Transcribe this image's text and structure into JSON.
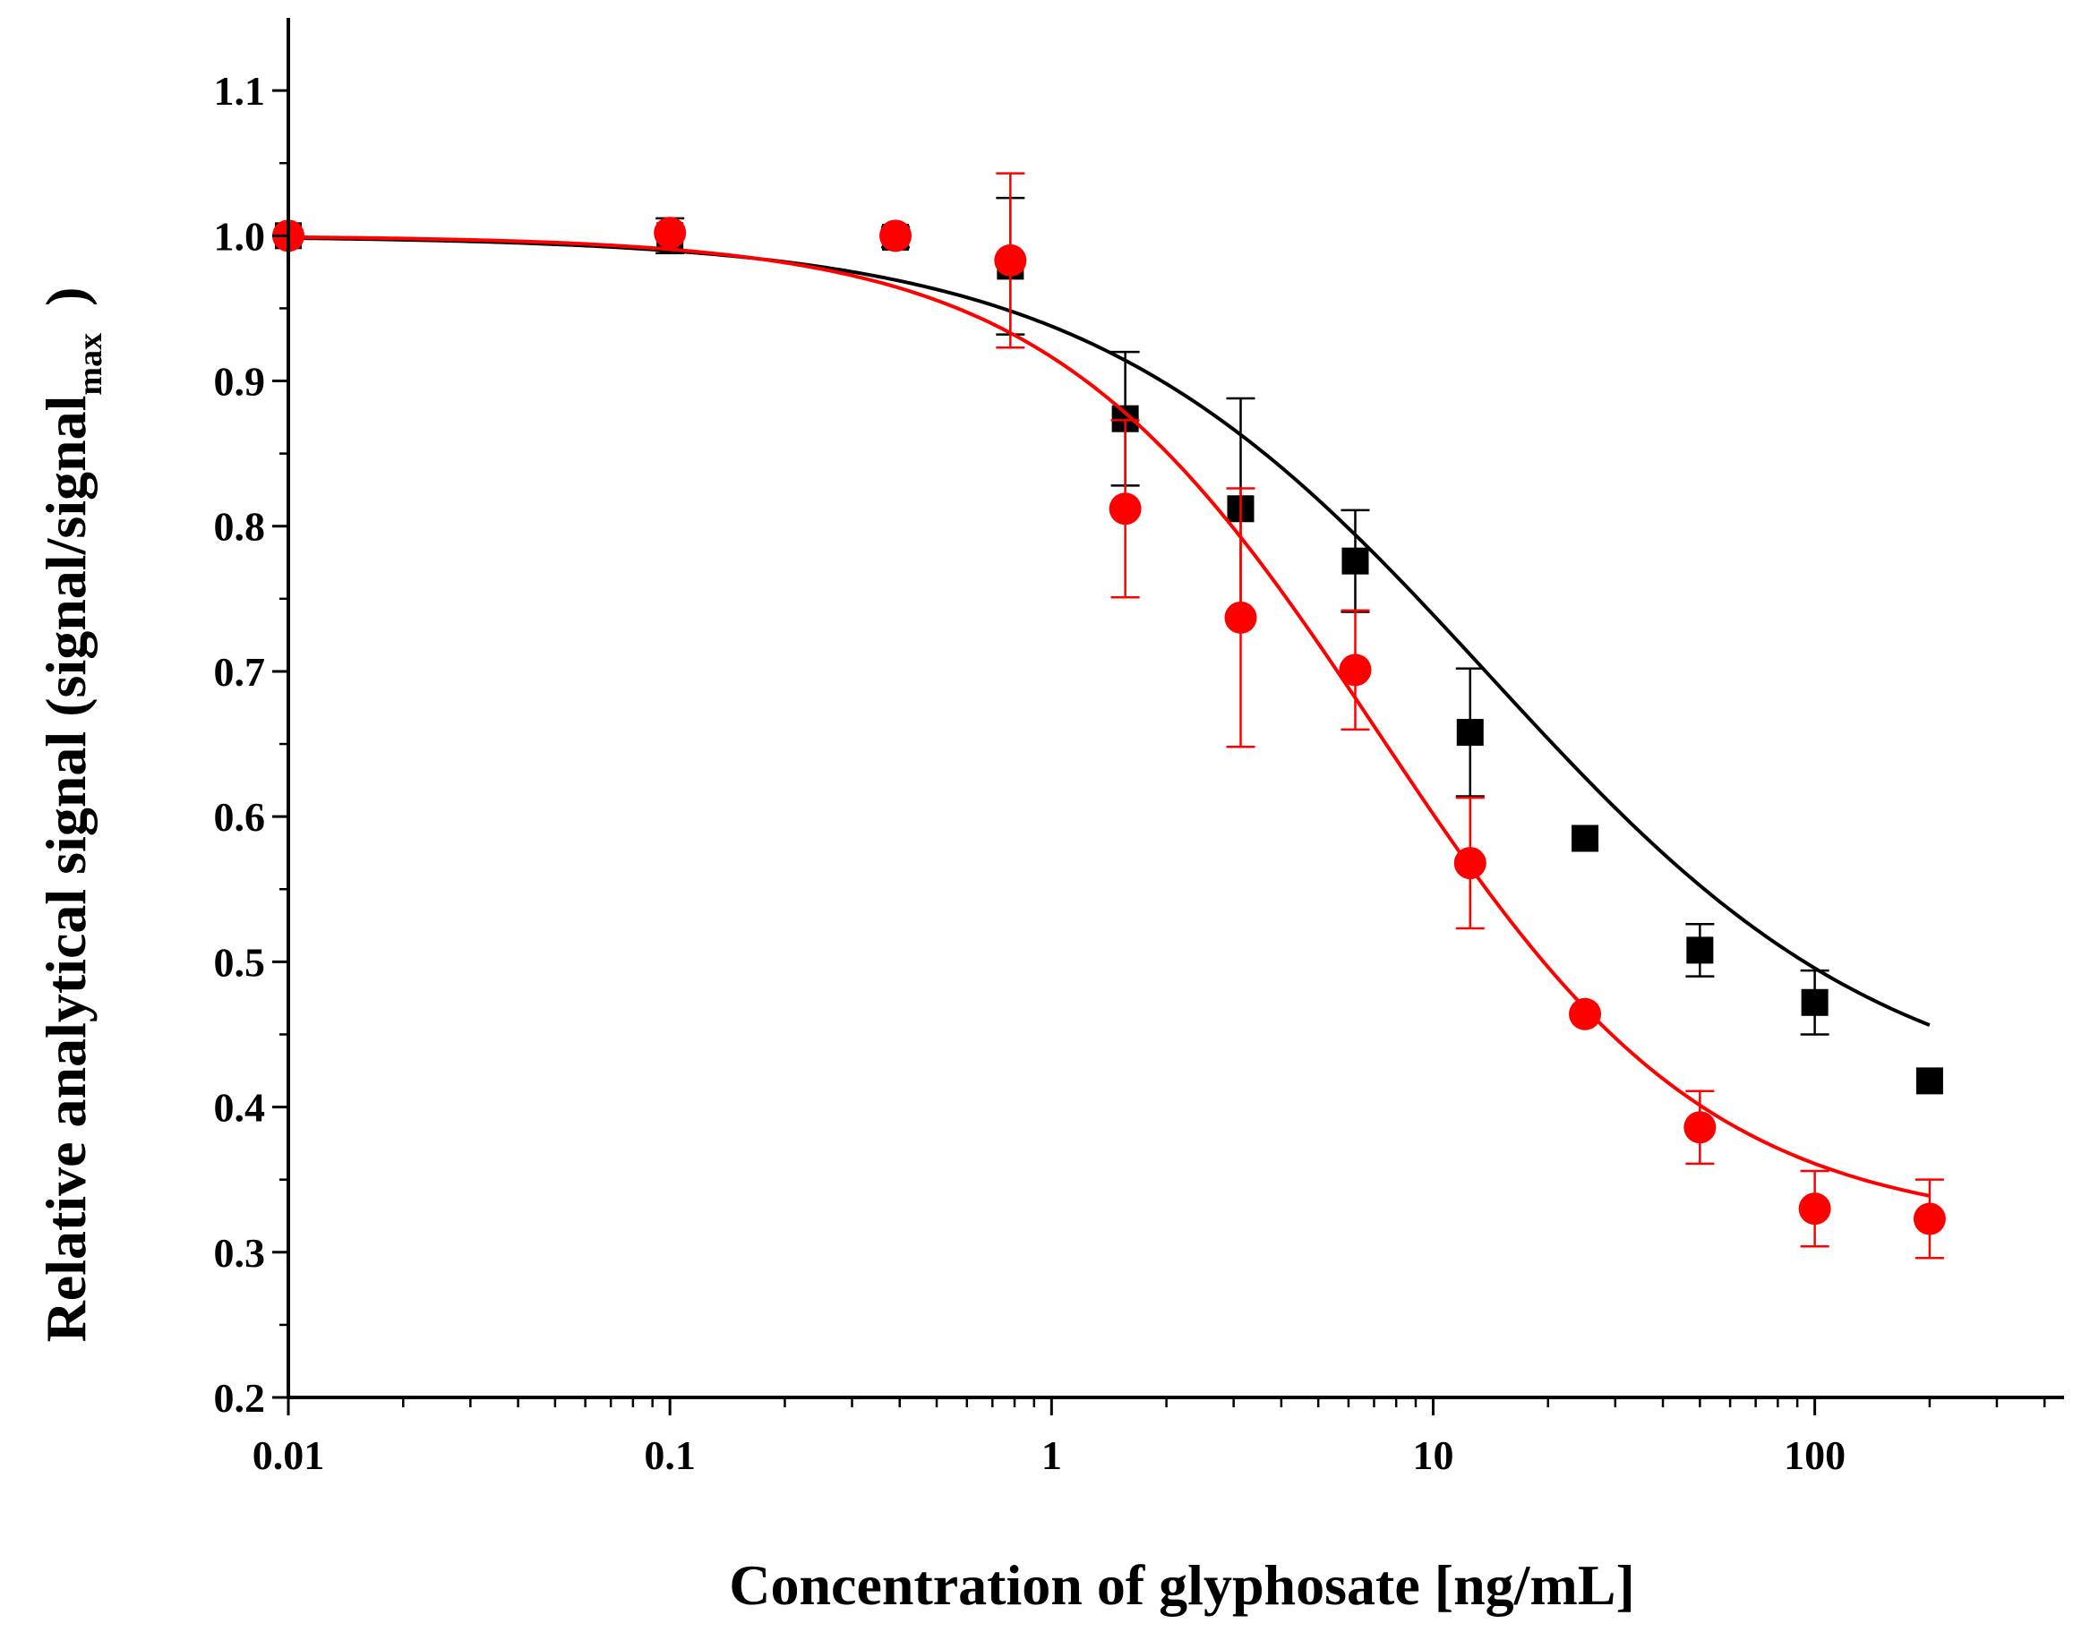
{
  "chart_data": {
    "type": "scatter",
    "title": "",
    "xlabel": "Concentration of glyphosate [ng/mL]",
    "ylabel": {
      "main": "Relative analytical signal (signal/signal",
      "subscript": "max",
      "close": ")"
    },
    "xscale": "log",
    "xlim": [
      0.01,
      450
    ],
    "ylim": [
      0.2,
      1.15
    ],
    "x_ticks": [
      {
        "value": 0.01,
        "label": "0.01"
      },
      {
        "value": 0.1,
        "label": "0.1"
      },
      {
        "value": 1,
        "label": "1"
      },
      {
        "value": 10,
        "label": "10"
      },
      {
        "value": 100,
        "label": "100"
      }
    ],
    "y_ticks": [
      {
        "value": 0.2,
        "label": "0.2"
      },
      {
        "value": 0.3,
        "label": "0.3"
      },
      {
        "value": 0.4,
        "label": "0.4"
      },
      {
        "value": 0.5,
        "label": "0.5"
      },
      {
        "value": 0.6,
        "label": "0.6"
      },
      {
        "value": 0.7,
        "label": "0.7"
      },
      {
        "value": 0.8,
        "label": "0.8"
      },
      {
        "value": 0.9,
        "label": "0.9"
      },
      {
        "value": 1.0,
        "label": "1.0"
      },
      {
        "value": 1.1,
        "label": "1.1"
      }
    ],
    "grid": false,
    "legend": "none",
    "series": [
      {
        "name": "black squares",
        "color": "#000000",
        "marker": "square",
        "x": [
          0.01,
          0.1,
          0.39,
          0.78,
          1.56,
          3.13,
          6.25,
          12.5,
          25,
          50,
          100,
          200
        ],
        "y": [
          1.0,
          1.0,
          0.999,
          0.979,
          0.874,
          0.812,
          0.776,
          0.658,
          0.585,
          0.508,
          0.472,
          0.418
        ],
        "err": [
          0.0,
          0.012,
          0.007,
          0.047,
          0.046,
          0.076,
          0.035,
          0.044,
          0.0,
          0.018,
          0.022,
          0.0
        ],
        "fit": {
          "top": 1.0,
          "bottom": 0.395,
          "ec50": 14.0,
          "hill": 0.82
        }
      },
      {
        "name": "red circles",
        "color": "#ff0000",
        "marker": "circle",
        "x": [
          0.01,
          0.1,
          0.39,
          0.78,
          1.56,
          3.13,
          6.25,
          12.5,
          25,
          50,
          100,
          200
        ],
        "y": [
          1.0,
          1.002,
          1.0,
          0.983,
          0.812,
          0.737,
          0.701,
          0.568,
          0.464,
          0.386,
          0.33,
          0.323
        ],
        "err": [
          0.0,
          0.0,
          0.0,
          0.06,
          0.061,
          0.089,
          0.041,
          0.045,
          0.0,
          0.025,
          0.026,
          0.027
        ],
        "fit": {
          "top": 1.0,
          "bottom": 0.315,
          "ec50": 7.2,
          "hill": 1.0
        }
      }
    ]
  }
}
